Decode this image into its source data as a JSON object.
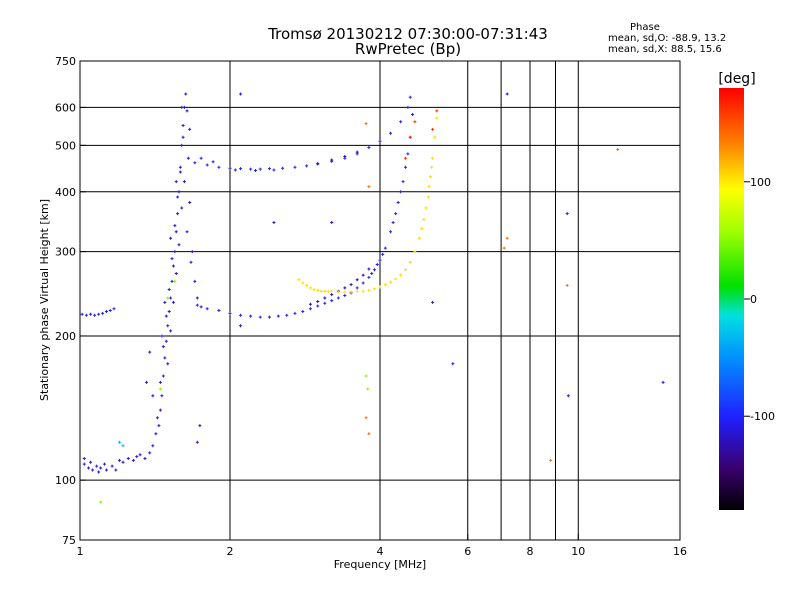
{
  "header": {
    "title": "Tromsø 20130212 07:30:00-07:31:43",
    "subtitle": "RwPretec (Bp)"
  },
  "phase_info": {
    "heading": "Phase",
    "o_line": "mean, sd,O: -88.9, 13.2",
    "x_line": "mean, sd,X: 88.5, 15.6"
  },
  "colorbar": {
    "label": "[deg]",
    "ticks": [
      {
        "value": 100,
        "label": "100"
      },
      {
        "value": 0,
        "label": "0"
      },
      {
        "value": -100,
        "label": "-100"
      }
    ],
    "range": [
      -180,
      180
    ]
  },
  "chart_data": {
    "type": "scatter",
    "title": "Tromsø 20130212 07:30:00-07:31:43",
    "subtitle": "RwPretec (Bp)",
    "xlabel": "Frequency [MHz]",
    "ylabel": "Stationary phase Virtual Height [km]",
    "x_scale": "log",
    "y_scale": "log",
    "xlim": [
      1,
      16
    ],
    "ylim": [
      75,
      750
    ],
    "x_ticks": [
      1,
      2,
      4,
      6,
      8,
      10,
      16
    ],
    "x_ticklabels": [
      "1",
      "2",
      "4",
      "6",
      "8",
      "10",
      "16"
    ],
    "x_minor_ticks": [
      7,
      9
    ],
    "y_ticks": [
      75,
      100,
      200,
      300,
      400,
      500,
      600,
      750
    ],
    "y_ticklabels": [
      "75",
      "100",
      "200",
      "300",
      "400",
      "500",
      "600",
      "750"
    ],
    "grid": true,
    "grid_x": [
      2,
      4,
      6,
      8,
      10
    ],
    "grid_y": [
      100,
      200,
      300,
      400,
      500,
      600
    ],
    "color_by": "phase [deg]",
    "series": [
      {
        "phase": -110,
        "points": [
          [
            1.02,
            108
          ],
          [
            1.04,
            106
          ],
          [
            1.06,
            105
          ],
          [
            1.08,
            107
          ],
          [
            1.1,
            106
          ],
          [
            1.13,
            105
          ],
          [
            1.16,
            107
          ],
          [
            1.2,
            110
          ],
          [
            1.25,
            111
          ],
          [
            1.3,
            112
          ],
          [
            1.35,
            111
          ],
          [
            1.02,
            111
          ],
          [
            1.05,
            109
          ],
          [
            1.09,
            104
          ],
          [
            1.12,
            108
          ],
          [
            1.18,
            105
          ],
          [
            1.22,
            109
          ],
          [
            1.28,
            110
          ],
          [
            1.32,
            113
          ],
          [
            1.38,
            114
          ],
          [
            1.4,
            118
          ],
          [
            1.42,
            125
          ],
          [
            1.44,
            130
          ],
          [
            1.45,
            140
          ],
          [
            1.46,
            150
          ],
          [
            1.47,
            165
          ],
          [
            1.48,
            180
          ],
          [
            1.49,
            195
          ],
          [
            1.5,
            210
          ],
          [
            1.51,
            225
          ],
          [
            1.52,
            240
          ],
          [
            1.53,
            260
          ],
          [
            1.54,
            280
          ],
          [
            1.55,
            300
          ],
          [
            1.56,
            330
          ],
          [
            1.57,
            360
          ],
          [
            1.58,
            400
          ],
          [
            1.59,
            450
          ],
          [
            1.6,
            500
          ],
          [
            1.61,
            550
          ],
          [
            1.62,
            600
          ],
          [
            1.63,
            640
          ],
          [
            1.43,
            135
          ],
          [
            1.45,
            160
          ],
          [
            1.47,
            190
          ],
          [
            1.49,
            220
          ],
          [
            1.51,
            250
          ],
          [
            1.53,
            290
          ],
          [
            1.55,
            340
          ],
          [
            1.57,
            390
          ],
          [
            1.59,
            440
          ],
          [
            1.61,
            520
          ],
          [
            1.64,
            590
          ],
          [
            1.5,
            175
          ],
          [
            1.52,
            205
          ],
          [
            1.54,
            235
          ],
          [
            1.56,
            270
          ],
          [
            1.58,
            310
          ],
          [
            1.6,
            370
          ],
          [
            1.62,
            420
          ],
          [
            1.65,
            470
          ],
          [
            1.66,
            540
          ],
          [
            1.46,
            200
          ],
          [
            1.48,
            235
          ],
          [
            1.52,
            320
          ],
          [
            1.56,
            420
          ],
          [
            1.6,
            600
          ],
          [
            1.66,
            380
          ],
          [
            1.68,
            300
          ],
          [
            1.7,
            260
          ],
          [
            1.72,
            240
          ],
          [
            1.75,
            230
          ],
          [
            1.64,
            330
          ],
          [
            1.67,
            285
          ],
          [
            1.36,
            160
          ],
          [
            1.38,
            185
          ],
          [
            1.4,
            150
          ]
        ]
      },
      {
        "phase": -100,
        "points": [
          [
            1.01,
            222
          ],
          [
            1.03,
            221
          ],
          [
            1.05,
            222
          ],
          [
            1.07,
            221
          ],
          [
            1.09,
            222
          ],
          [
            1.11,
            223
          ],
          [
            1.13,
            225
          ],
          [
            1.15,
            226
          ],
          [
            1.17,
            228
          ],
          [
            1.72,
            232
          ],
          [
            1.8,
            228
          ],
          [
            1.9,
            226
          ],
          [
            2.0,
            223
          ],
          [
            2.1,
            221
          ],
          [
            2.2,
            220
          ],
          [
            2.3,
            219
          ],
          [
            2.4,
            219
          ],
          [
            2.5,
            220
          ],
          [
            2.6,
            221
          ],
          [
            2.7,
            223
          ],
          [
            2.8,
            225
          ],
          [
            2.9,
            228
          ],
          [
            3.0,
            231
          ],
          [
            3.1,
            234
          ],
          [
            3.2,
            237
          ],
          [
            3.3,
            240
          ],
          [
            3.4,
            243
          ],
          [
            3.5,
            246
          ],
          [
            3.6,
            252
          ],
          [
            3.7,
            258
          ],
          [
            3.8,
            265
          ],
          [
            3.9,
            275
          ],
          [
            4.0,
            288
          ],
          [
            4.1,
            305
          ],
          [
            4.2,
            330
          ],
          [
            4.3,
            360
          ],
          [
            4.4,
            400
          ],
          [
            4.5,
            450
          ],
          [
            4.6,
            520
          ],
          [
            4.65,
            580
          ],
          [
            1.7,
            460
          ],
          [
            1.8,
            455
          ],
          [
            1.9,
            450
          ],
          [
            2.0,
            448
          ],
          [
            2.1,
            447
          ],
          [
            2.2,
            446
          ],
          [
            2.3,
            446
          ],
          [
            2.4,
            447
          ],
          [
            2.55,
            448
          ],
          [
            2.7,
            450
          ],
          [
            2.85,
            453
          ],
          [
            3.0,
            457
          ],
          [
            3.2,
            463
          ],
          [
            3.4,
            470
          ],
          [
            3.6,
            480
          ],
          [
            3.8,
            495
          ],
          [
            4.0,
            510
          ],
          [
            4.2,
            530
          ],
          [
            4.4,
            560
          ],
          [
            4.55,
            600
          ],
          [
            4.6,
            630
          ],
          [
            1.75,
            470
          ],
          [
            1.85,
            462
          ],
          [
            2.05,
            444
          ],
          [
            2.25,
            443
          ],
          [
            2.45,
            444
          ],
          [
            4.25,
            345
          ],
          [
            4.35,
            380
          ],
          [
            4.45,
            420
          ],
          [
            4.55,
            480
          ],
          [
            3.85,
            270
          ],
          [
            3.95,
            282
          ],
          [
            4.05,
            296
          ]
        ]
      },
      {
        "phase": -125,
        "points": [
          [
            2.9,
            233
          ],
          [
            3.0,
            236
          ],
          [
            3.1,
            240
          ],
          [
            3.2,
            244
          ],
          [
            3.3,
            248
          ],
          [
            3.4,
            252
          ],
          [
            3.5,
            256
          ],
          [
            3.6,
            262
          ],
          [
            3.7,
            268
          ],
          [
            3.8,
            276
          ],
          [
            3.2,
            466
          ],
          [
            3.4,
            474
          ],
          [
            3.6,
            484
          ],
          [
            3.0,
            458
          ]
        ]
      },
      {
        "phase": 105,
        "points": [
          [
            2.75,
            262
          ],
          [
            2.8,
            258
          ],
          [
            2.85,
            255
          ],
          [
            2.9,
            252
          ],
          [
            2.95,
            250
          ],
          [
            3.0,
            249
          ],
          [
            3.05,
            248
          ],
          [
            3.1,
            248
          ],
          [
            3.15,
            248
          ],
          [
            3.2,
            248
          ],
          [
            3.3,
            247
          ],
          [
            3.4,
            247
          ],
          [
            3.5,
            247
          ],
          [
            3.6,
            248
          ],
          [
            3.7,
            248
          ],
          [
            3.8,
            249
          ],
          [
            3.9,
            251
          ],
          [
            4.0,
            253
          ],
          [
            4.1,
            256
          ],
          [
            4.2,
            259
          ],
          [
            4.3,
            263
          ],
          [
            4.4,
            268
          ],
          [
            4.5,
            275
          ],
          [
            4.6,
            285
          ],
          [
            4.7,
            300
          ],
          [
            4.8,
            320
          ],
          [
            4.9,
            350
          ],
          [
            5.0,
            390
          ],
          [
            5.05,
            430
          ],
          [
            5.1,
            470
          ],
          [
            5.15,
            520
          ],
          [
            5.2,
            570
          ],
          [
            4.85,
            335
          ],
          [
            4.95,
            370
          ],
          [
            5.02,
            410
          ],
          [
            5.08,
            450
          ]
        ]
      },
      {
        "phase": 160,
        "points": [
          [
            4.6,
            520
          ],
          [
            4.7,
            560
          ],
          [
            5.2,
            590
          ],
          [
            5.1,
            540
          ],
          [
            4.5,
            470
          ]
        ]
      },
      {
        "phase": 140,
        "points": [
          [
            3.75,
            555
          ],
          [
            3.8,
            410
          ],
          [
            3.75,
            135
          ],
          [
            3.8,
            125
          ],
          [
            7.1,
            305
          ],
          [
            7.2,
            320
          ],
          [
            12.0,
            490
          ],
          [
            8.8,
            110
          ],
          [
            9.5,
            255
          ]
        ]
      },
      {
        "phase": -110,
        "points": [
          [
            2.1,
            640
          ],
          [
            2.45,
            345
          ],
          [
            3.2,
            345
          ],
          [
            5.6,
            175
          ],
          [
            5.1,
            235
          ],
          [
            7.2,
            640
          ],
          [
            9.5,
            360
          ],
          [
            9.55,
            150
          ],
          [
            14.8,
            160
          ],
          [
            1.72,
            120
          ],
          [
            1.74,
            130
          ],
          [
            2.1,
            210
          ]
        ]
      },
      {
        "phase": 50,
        "points": [
          [
            1.1,
            90
          ],
          [
            3.75,
            165
          ],
          [
            3.78,
            155
          ],
          [
            1.5,
            240
          ],
          [
            1.55,
            260
          ],
          [
            1.45,
            155
          ]
        ]
      },
      {
        "phase": -30,
        "points": [
          [
            1.2,
            120
          ],
          [
            1.22,
            118
          ]
        ]
      }
    ]
  }
}
